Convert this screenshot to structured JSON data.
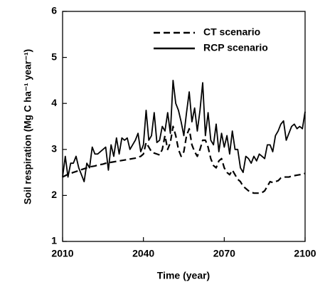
{
  "chart_data": {
    "type": "line",
    "x_label": "Time (year)",
    "y_label": "Soil respiration (Mg C ha⁻¹ year⁻¹)",
    "x": [
      2010,
      2011,
      2012,
      2013,
      2014,
      2015,
      2016,
      2017,
      2018,
      2019,
      2020,
      2021,
      2022,
      2023,
      2024,
      2025,
      2026,
      2027,
      2028,
      2029,
      2030,
      2031,
      2032,
      2033,
      2034,
      2035,
      2036,
      2037,
      2038,
      2039,
      2040,
      2041,
      2042,
      2043,
      2044,
      2045,
      2046,
      2047,
      2048,
      2049,
      2050,
      2051,
      2052,
      2053,
      2054,
      2055,
      2056,
      2057,
      2058,
      2059,
      2060,
      2061,
      2062,
      2063,
      2064,
      2065,
      2066,
      2067,
      2068,
      2069,
      2070,
      2071,
      2072,
      2073,
      2074,
      2075,
      2076,
      2077,
      2078,
      2079,
      2080,
      2081,
      2082,
      2083,
      2084,
      2085,
      2086,
      2087,
      2088,
      2089,
      2090,
      2091,
      2092,
      2093,
      2094,
      2095,
      2096,
      2097,
      2098,
      2099,
      2100
    ],
    "series": [
      {
        "name": "CT scenario",
        "color": "#000000",
        "linestyle": "dashed",
        "values": [
          2.4,
          2.43,
          2.46,
          2.48,
          2.5,
          2.52,
          2.54,
          2.56,
          2.58,
          2.6,
          2.62,
          2.63,
          2.64,
          2.66,
          2.67,
          2.68,
          2.7,
          2.71,
          2.72,
          2.73,
          2.74,
          2.75,
          2.76,
          2.77,
          2.78,
          2.79,
          2.8,
          2.81,
          2.83,
          2.85,
          2.9,
          3.15,
          3.05,
          2.95,
          2.92,
          2.9,
          2.88,
          3.0,
          3.3,
          3.0,
          3.15,
          3.5,
          3.3,
          3.0,
          2.85,
          2.95,
          3.3,
          3.45,
          3.1,
          2.95,
          2.85,
          3.0,
          3.2,
          3.2,
          3.05,
          2.8,
          2.65,
          2.6,
          2.75,
          2.8,
          2.6,
          2.5,
          2.45,
          2.55,
          2.45,
          2.35,
          2.3,
          2.2,
          2.15,
          2.1,
          2.07,
          2.05,
          2.05,
          2.05,
          2.06,
          2.1,
          2.2,
          2.3,
          2.28,
          2.3,
          2.32,
          2.38,
          2.4,
          2.4,
          2.4,
          2.42,
          2.43,
          2.44,
          2.45,
          2.46,
          2.48
        ]
      },
      {
        "name": "RCP scenario",
        "color": "#000000",
        "linestyle": "solid",
        "values": [
          2.4,
          2.85,
          2.4,
          2.7,
          2.7,
          2.85,
          2.6,
          2.45,
          2.3,
          2.7,
          2.6,
          3.05,
          2.9,
          2.9,
          2.95,
          3.0,
          3.05,
          2.55,
          3.1,
          2.85,
          3.25,
          2.9,
          3.25,
          3.2,
          3.25,
          3.0,
          3.1,
          3.2,
          3.35,
          2.95,
          3.1,
          3.85,
          3.2,
          3.3,
          3.8,
          3.15,
          3.2,
          3.5,
          3.4,
          3.8,
          3.35,
          4.5,
          4.0,
          3.85,
          3.6,
          3.3,
          3.8,
          4.25,
          3.6,
          3.9,
          3.4,
          3.85,
          4.45,
          3.3,
          3.8,
          3.2,
          3.1,
          3.55,
          2.95,
          3.35,
          3.05,
          3.3,
          2.9,
          3.4,
          3.0,
          3.0,
          2.6,
          2.5,
          2.85,
          2.8,
          2.7,
          2.85,
          2.75,
          2.9,
          2.85,
          2.8,
          3.1,
          3.1,
          2.95,
          3.3,
          3.4,
          3.55,
          3.62,
          3.2,
          3.35,
          3.5,
          3.55,
          3.45,
          3.5,
          3.45,
          3.82
        ]
      }
    ],
    "xlim": [
      2010,
      2100
    ],
    "xticks": [
      2010,
      2040,
      2070,
      2100
    ],
    "ylim": [
      1,
      6
    ],
    "yticks": [
      1,
      2,
      3,
      4,
      5,
      6
    ],
    "legend": "upper right",
    "grid": false
  }
}
